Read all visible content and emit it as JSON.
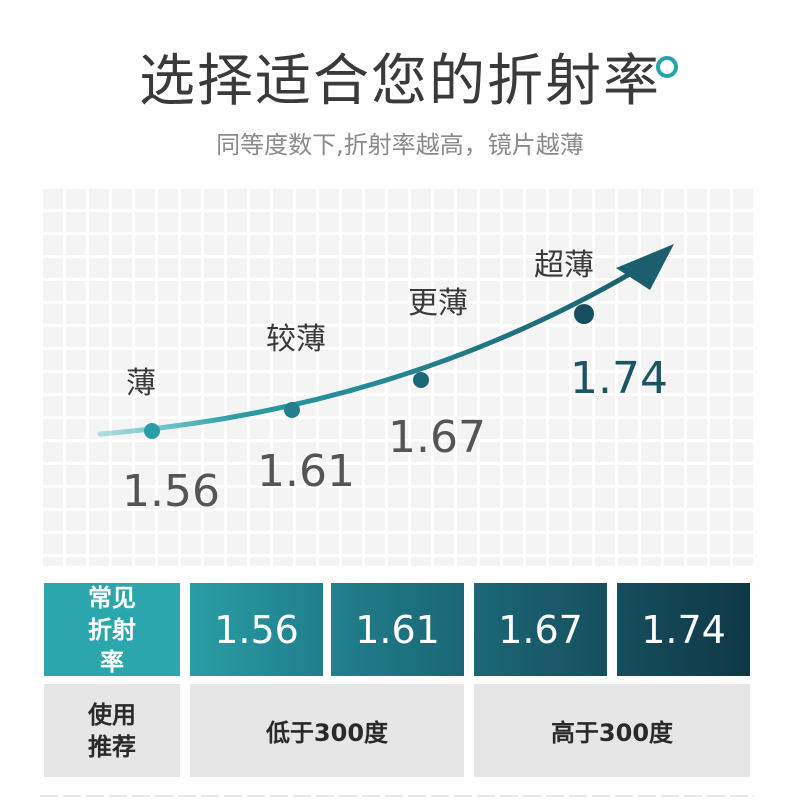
{
  "header": {
    "title": "选择适合您的折射率",
    "subtitle": "同等度数下,折射率越高，镜片越薄"
  },
  "chart": {
    "points": [
      {
        "thinness": "薄",
        "index": "1.56",
        "value": 1.56
      },
      {
        "thinness": "较薄",
        "index": "1.61",
        "value": 1.61
      },
      {
        "thinness": "更薄",
        "index": "1.67",
        "value": 1.67
      },
      {
        "thinness": "超薄",
        "index": "1.74",
        "value": 1.74
      }
    ],
    "curve_color": "#1b5e6e"
  },
  "table": {
    "row1_header": [
      "常见",
      "折射率"
    ],
    "row1_values": [
      "1.56",
      "1.61",
      "1.67",
      "1.74"
    ],
    "row2_header": [
      "使用",
      "推荐"
    ],
    "row2_values": [
      "低于300度",
      "高于300度"
    ]
  },
  "colors": {
    "accent": "#2aa6ac",
    "dark_teal": "#0f3846",
    "text": "#3a3a3a"
  }
}
